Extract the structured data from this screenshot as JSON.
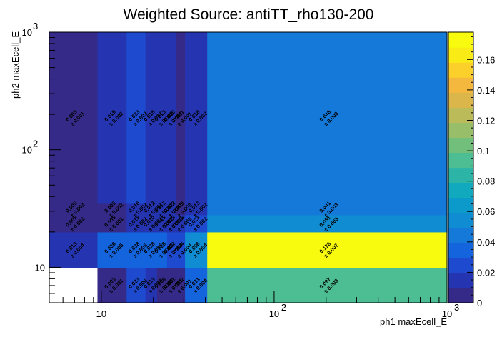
{
  "chart_data": {
    "type": "heatmap",
    "title": "Weighted Source: antiTT_rho130-200",
    "xlabel": "ph1 maxEcell_E",
    "ylabel": "ph2 maxEcell_E",
    "x_scale": "log",
    "y_scale": "log",
    "xlim": [
      5,
      1000
    ],
    "ylim": [
      5,
      1000
    ],
    "x_edges": [
      5,
      9.5,
      14,
      18,
      21,
      24,
      27,
      30.5,
      41,
      1000
    ],
    "y_edges": [
      5,
      10,
      20,
      28,
      35,
      1000
    ],
    "x_ticks": [
      {
        "value": 10,
        "label": "10"
      },
      {
        "value": 100,
        "label": "10"
      },
      {
        "value": 1000,
        "label": "10"
      }
    ],
    "y_ticks": [
      {
        "value": 10,
        "label": "10"
      },
      {
        "value": 100,
        "label": "10"
      },
      {
        "value": 1000,
        "label": "10"
      }
    ],
    "zlim": [
      0,
      0.178
    ],
    "z_ticks": [
      "0",
      "0.02",
      "0.04",
      "0.06",
      "0.08",
      "0.1",
      "0.12",
      "0.14",
      "0.16"
    ],
    "z_tick_values": [
      0,
      0.02,
      0.04,
      0.06,
      0.08,
      0.1,
      0.12,
      0.14,
      0.16
    ],
    "cells": [
      {
        "ix": 1,
        "iy": 0,
        "z": 0.003,
        "err": 0.001,
        "value_label": "0.003",
        "error_label": "± 0.001"
      },
      {
        "ix": 2,
        "iy": 0,
        "z": 0.023,
        "err": 0.006,
        "value_label": "0.023",
        "error_label": "± 0.006"
      },
      {
        "ix": 3,
        "iy": 0,
        "z": 0.013,
        "err": 0.004,
        "value_label": "0.013",
        "error_label": "± 0.004"
      },
      {
        "ix": 4,
        "iy": 0,
        "z": 0.008,
        "err": 0.003,
        "value_label": "0.008",
        "error_label": "± 0.003"
      },
      {
        "ix": 5,
        "iy": 0,
        "z": 0.001,
        "err": 0.001,
        "value_label": "0.001",
        "error_label": "± 0.001"
      },
      {
        "ix": 6,
        "iy": 0,
        "z": 0.002,
        "err": 0.001,
        "value_label": "0.002",
        "error_label": "± 0.001"
      },
      {
        "ix": 7,
        "iy": 0,
        "z": 0.031,
        "err": 0.004,
        "value_label": "0.031",
        "error_label": "± 0.004"
      },
      {
        "ix": 8,
        "iy": 0,
        "z": 0.097,
        "err": 0.008,
        "value_label": "0.097",
        "error_label": "± 0.008"
      },
      {
        "ix": 0,
        "iy": 1,
        "z": 0.013,
        "err": 0.004,
        "value_label": "0.013",
        "error_label": "± 0.004"
      },
      {
        "ix": 1,
        "iy": 1,
        "z": 0.036,
        "err": 0.005,
        "value_label": "0.036",
        "error_label": "± 0.005"
      },
      {
        "ix": 2,
        "iy": 1,
        "z": 0.038,
        "err": 0.005,
        "value_label": "0.038",
        "error_label": "± 0.005"
      },
      {
        "ix": 3,
        "iy": 1,
        "z": 0.038,
        "err": 0.005,
        "value_label": "0.038",
        "error_label": "± 0.005"
      },
      {
        "ix": 4,
        "iy": 1,
        "z": 0.038,
        "err": 0.005,
        "value_label": "0.038",
        "error_label": "± 0.005"
      },
      {
        "ix": 5,
        "iy": 1,
        "z": 0.022,
        "err": 0.004,
        "value_label": "0.022",
        "error_label": "± 0.004"
      },
      {
        "ix": 6,
        "iy": 1,
        "z": 0.024,
        "err": 0.004,
        "value_label": "0.024",
        "error_label": "± 0.004"
      },
      {
        "ix": 7,
        "iy": 1,
        "z": 0.056,
        "err": 0.004,
        "value_label": "0.056",
        "error_label": "± 0.004"
      },
      {
        "ix": 8,
        "iy": 1,
        "z": 0.176,
        "err": 0.007,
        "value_label": "0.176",
        "error_label": "± 0.007"
      },
      {
        "ix": 0,
        "iy": 2,
        "z": 0.005,
        "err": 0.002,
        "value_label": "0.005",
        "error_label": "± 0.002"
      },
      {
        "ix": 1,
        "iy": 2,
        "z": 0.005,
        "err": 0.001,
        "value_label": "0.005",
        "error_label": "± 0.001"
      },
      {
        "ix": 2,
        "iy": 2,
        "z": 0.015,
        "err": 0.002,
        "value_label": "0.015",
        "error_label": "± 0.002"
      },
      {
        "ix": 3,
        "iy": 2,
        "z": 0.01,
        "err": 0.002,
        "value_label": "0.010",
        "error_label": "± 0.002"
      },
      {
        "ix": 4,
        "iy": 2,
        "z": 0.015,
        "err": 0.002,
        "value_label": "0.015",
        "error_label": "± 0.002"
      },
      {
        "ix": 5,
        "iy": 2,
        "z": 0.015,
        "err": 0.002,
        "value_label": "0.015",
        "error_label": "± 0.002"
      },
      {
        "ix": 6,
        "iy": 2,
        "z": 0.016,
        "err": 0.002,
        "value_label": "0.016",
        "error_label": "± 0.002"
      },
      {
        "ix": 7,
        "iy": 2,
        "z": 0.023,
        "err": 0.002,
        "value_label": "0.023",
        "error_label": "± 0.002"
      },
      {
        "ix": 8,
        "iy": 2,
        "z": 0.051,
        "err": 0.003,
        "value_label": "0.051",
        "error_label": "± 0.003"
      },
      {
        "ix": 0,
        "iy": 3,
        "z": 0.005,
        "err": 0.002,
        "value_label": "0.005",
        "error_label": "± 0.002"
      },
      {
        "ix": 1,
        "iy": 3,
        "z": 0.005,
        "err": 0.002,
        "value_label": "0.005",
        "error_label": "± 0.002"
      },
      {
        "ix": 2,
        "iy": 3,
        "z": 0.01,
        "err": 0.002,
        "value_label": "0.010",
        "error_label": "± 0.002"
      },
      {
        "ix": 3,
        "iy": 3,
        "z": 0.012,
        "err": 0.002,
        "value_label": "0.012",
        "error_label": "± 0.002"
      },
      {
        "ix": 4,
        "iy": 3,
        "z": 0.013,
        "err": 0.002,
        "value_label": "0.013",
        "error_label": "± 0.002"
      },
      {
        "ix": 5,
        "iy": 3,
        "z": 0.012,
        "err": 0.002,
        "value_label": "0.012",
        "error_label": "± 0.002"
      },
      {
        "ix": 6,
        "iy": 3,
        "z": 0.009,
        "err": 0.002,
        "value_label": "0.009",
        "error_label": "± 0.002"
      },
      {
        "ix": 7,
        "iy": 3,
        "z": 0.013,
        "err": 0.002,
        "value_label": "0.013",
        "error_label": "± 0.002"
      },
      {
        "ix": 8,
        "iy": 3,
        "z": 0.041,
        "err": 0.003,
        "value_label": "0.041",
        "error_label": "± 0.003"
      },
      {
        "ix": 0,
        "iy": 4,
        "z": 0.003,
        "err": 0.001,
        "value_label": "0.003",
        "error_label": "± 0.001"
      },
      {
        "ix": 1,
        "iy": 4,
        "z": 0.015,
        "err": 0.002,
        "value_label": "0.015",
        "error_label": "± 0.002"
      },
      {
        "ix": 2,
        "iy": 4,
        "z": 0.023,
        "err": 0.003,
        "value_label": "0.023",
        "error_label": "± 0.003"
      },
      {
        "ix": 3,
        "iy": 4,
        "z": 0.015,
        "err": 0.002,
        "value_label": "0.015",
        "error_label": "± 0.002"
      },
      {
        "ix": 4,
        "iy": 4,
        "z": 0.013,
        "err": 0.002,
        "value_label": "0.013",
        "error_label": "± 0.002"
      },
      {
        "ix": 5,
        "iy": 4,
        "z": 0.01,
        "err": 0.002,
        "value_label": "0.010",
        "error_label": "± 0.002"
      },
      {
        "ix": 6,
        "iy": 4,
        "z": 0.001,
        "err": 0.001,
        "value_label": "0.001",
        "error_label": "± 0.001"
      },
      {
        "ix": 7,
        "iy": 4,
        "z": 0.018,
        "err": 0.002,
        "value_label": "0.018",
        "error_label": "± 0.002"
      },
      {
        "ix": 8,
        "iy": 4,
        "z": 0.046,
        "err": 0.003,
        "value_label": "0.046",
        "error_label": "± 0.003"
      }
    ],
    "palette": [
      "#352a87",
      "#2535b1",
      "#1e4ad0",
      "#1464de",
      "#1479d9",
      "#0f8cd2",
      "#0c9acb",
      "#10a9bd",
      "#2cb5a7",
      "#4dbd93",
      "#72bf7c",
      "#99be69",
      "#bcbb5a",
      "#dbb64a",
      "#f5b83f",
      "#fbd02b",
      "#f9ec16",
      "#f9fb0e"
    ],
    "grid": false,
    "legend": "colorbar-right"
  }
}
